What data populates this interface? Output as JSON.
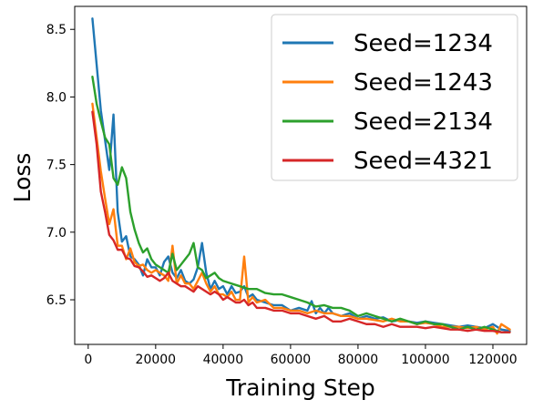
{
  "chart_data": {
    "type": "line",
    "xlabel": "Training Step",
    "ylabel": "Loss",
    "xlim": [
      -4000,
      130000
    ],
    "ylim": [
      6.17,
      8.67
    ],
    "xticks": [
      0,
      20000,
      40000,
      60000,
      80000,
      100000,
      120000
    ],
    "xtick_labels": [
      "0",
      "20000",
      "40000",
      "60000",
      "80000",
      "100000",
      "120000"
    ],
    "yticks": [
      6.5,
      7.0,
      7.5,
      8.0,
      8.5
    ],
    "ytick_labels": [
      "6.5",
      "7.0",
      "7.5",
      "8.0",
      "8.5"
    ],
    "grid": false,
    "legend": "top-right",
    "series": [
      {
        "name": "Seed=1234",
        "color": "#1f77b4",
        "x": [
          1250,
          3750,
          6250,
          7500,
          8750,
          10000,
          11250,
          12500,
          13750,
          15000,
          16250,
          17500,
          18750,
          20000,
          21250,
          22500,
          23750,
          25000,
          26250,
          27500,
          28750,
          30000,
          31250,
          32500,
          33750,
          35000,
          36250,
          37500,
          38750,
          40000,
          41250,
          42500,
          43750,
          45000,
          46250,
          47500,
          48750,
          50000,
          52500,
          55000,
          57500,
          60000,
          62500,
          65000,
          66250,
          67500,
          68750,
          70000,
          71250,
          72500,
          75000,
          77500,
          80000,
          82500,
          85000,
          87500,
          90000,
          92500,
          95000,
          97500,
          100000,
          102500,
          105000,
          107500,
          110000,
          112500,
          115000,
          117500,
          120000,
          122500,
          125000
        ],
        "y": [
          8.58,
          7.9,
          7.46,
          7.87,
          7.15,
          6.93,
          6.97,
          6.82,
          6.8,
          6.76,
          6.68,
          6.8,
          6.74,
          6.74,
          6.68,
          6.78,
          6.82,
          6.7,
          6.66,
          6.72,
          6.64,
          6.62,
          6.65,
          6.74,
          6.92,
          6.7,
          6.58,
          6.64,
          6.58,
          6.6,
          6.54,
          6.6,
          6.55,
          6.56,
          6.6,
          6.52,
          6.54,
          6.5,
          6.48,
          6.46,
          6.46,
          6.42,
          6.44,
          6.42,
          6.49,
          6.4,
          6.44,
          6.4,
          6.44,
          6.4,
          6.38,
          6.4,
          6.36,
          6.38,
          6.36,
          6.37,
          6.34,
          6.35,
          6.34,
          6.33,
          6.34,
          6.33,
          6.32,
          6.31,
          6.3,
          6.31,
          6.3,
          6.29,
          6.32,
          6.28,
          6.27
        ]
      },
      {
        "name": "Seed=1243",
        "color": "#ff7f0e",
        "x": [
          1250,
          2500,
          3750,
          5000,
          6250,
          7500,
          8750,
          10000,
          11250,
          12500,
          13750,
          15000,
          16250,
          17500,
          18750,
          20000,
          21250,
          22500,
          23750,
          25000,
          26250,
          27500,
          28750,
          30000,
          31250,
          32500,
          33750,
          35000,
          36250,
          37500,
          38750,
          40000,
          41250,
          42500,
          43750,
          45000,
          46250,
          47500,
          48750,
          50000,
          52500,
          55000,
          57500,
          60000,
          62500,
          65000,
          67500,
          70000,
          72500,
          75000,
          77500,
          80000,
          82500,
          85000,
          87500,
          90000,
          92500,
          95000,
          97500,
          100000,
          102500,
          105000,
          107500,
          110000,
          112500,
          115000,
          117500,
          120000,
          121250,
          122500,
          125000
        ],
        "y": [
          7.95,
          7.7,
          7.45,
          7.25,
          7.06,
          7.17,
          6.9,
          6.9,
          6.8,
          6.88,
          6.78,
          6.75,
          6.76,
          6.72,
          6.7,
          6.72,
          6.7,
          6.68,
          6.64,
          6.9,
          6.62,
          6.68,
          6.62,
          6.62,
          6.58,
          6.64,
          6.7,
          6.62,
          6.56,
          6.6,
          6.54,
          6.54,
          6.52,
          6.56,
          6.5,
          6.5,
          6.82,
          6.48,
          6.52,
          6.48,
          6.5,
          6.44,
          6.44,
          6.42,
          6.42,
          6.4,
          6.42,
          6.4,
          6.4,
          6.38,
          6.38,
          6.36,
          6.36,
          6.35,
          6.34,
          6.36,
          6.34,
          6.34,
          6.32,
          6.33,
          6.32,
          6.3,
          6.3,
          6.3,
          6.29,
          6.3,
          6.28,
          6.3,
          6.25,
          6.32,
          6.28
        ]
      },
      {
        "name": "Seed=2134",
        "color": "#2ca02c",
        "x": [
          1250,
          2500,
          3750,
          5000,
          6250,
          7500,
          8750,
          10000,
          11250,
          12500,
          13750,
          15000,
          16250,
          17500,
          18750,
          20000,
          21250,
          22500,
          23750,
          25000,
          26250,
          27500,
          28750,
          30000,
          31250,
          32500,
          33750,
          35000,
          36250,
          37500,
          38750,
          40000,
          42500,
          45000,
          47500,
          50000,
          52500,
          55000,
          57500,
          60000,
          62500,
          65000,
          67500,
          70000,
          72500,
          75000,
          77500,
          80000,
          82500,
          85000,
          87500,
          90000,
          92500,
          95000,
          97500,
          100000,
          102500,
          105000,
          107500,
          110000,
          112500,
          115000,
          117500,
          120000,
          122500,
          125000
        ],
        "y": [
          8.15,
          7.95,
          7.82,
          7.7,
          7.65,
          7.4,
          7.35,
          7.48,
          7.4,
          7.15,
          7.02,
          6.92,
          6.85,
          6.88,
          6.8,
          6.76,
          6.74,
          6.72,
          6.7,
          6.84,
          6.72,
          6.76,
          6.8,
          6.84,
          6.92,
          6.74,
          6.72,
          6.66,
          6.68,
          6.7,
          6.66,
          6.64,
          6.62,
          6.6,
          6.58,
          6.58,
          6.55,
          6.54,
          6.54,
          6.52,
          6.5,
          6.48,
          6.45,
          6.46,
          6.44,
          6.44,
          6.42,
          6.38,
          6.4,
          6.38,
          6.36,
          6.34,
          6.36,
          6.34,
          6.32,
          6.34,
          6.32,
          6.32,
          6.3,
          6.28,
          6.3,
          6.28,
          6.3,
          6.28,
          6.26,
          6.26
        ]
      },
      {
        "name": "Seed=4321",
        "color": "#d62728",
        "x": [
          1250,
          2500,
          3750,
          5000,
          6250,
          7500,
          8750,
          10000,
          11250,
          12500,
          13750,
          15000,
          16250,
          17500,
          18750,
          20000,
          21250,
          22500,
          23750,
          25000,
          26250,
          27500,
          28750,
          30000,
          31250,
          32500,
          33750,
          35000,
          36250,
          37500,
          38750,
          40000,
          41250,
          42500,
          43750,
          45000,
          46250,
          47500,
          48750,
          50000,
          52500,
          55000,
          57500,
          60000,
          62500,
          65000,
          67500,
          70000,
          72500,
          75000,
          77500,
          80000,
          82500,
          85000,
          87500,
          90000,
          92500,
          95000,
          97500,
          100000,
          102500,
          105000,
          107500,
          110000,
          112500,
          115000,
          117500,
          120000,
          122500,
          125000
        ],
        "y": [
          7.89,
          7.65,
          7.3,
          7.15,
          6.98,
          6.94,
          6.87,
          6.87,
          6.81,
          6.8,
          6.75,
          6.74,
          6.71,
          6.67,
          6.68,
          6.66,
          6.64,
          6.66,
          6.7,
          6.64,
          6.62,
          6.6,
          6.6,
          6.58,
          6.56,
          6.6,
          6.58,
          6.56,
          6.54,
          6.56,
          6.54,
          6.5,
          6.52,
          6.5,
          6.48,
          6.48,
          6.5,
          6.46,
          6.48,
          6.44,
          6.44,
          6.42,
          6.42,
          6.4,
          6.4,
          6.38,
          6.36,
          6.38,
          6.34,
          6.34,
          6.36,
          6.34,
          6.32,
          6.32,
          6.3,
          6.32,
          6.3,
          6.3,
          6.3,
          6.29,
          6.3,
          6.29,
          6.28,
          6.28,
          6.27,
          6.28,
          6.27,
          6.27,
          6.26,
          6.26
        ]
      }
    ]
  }
}
